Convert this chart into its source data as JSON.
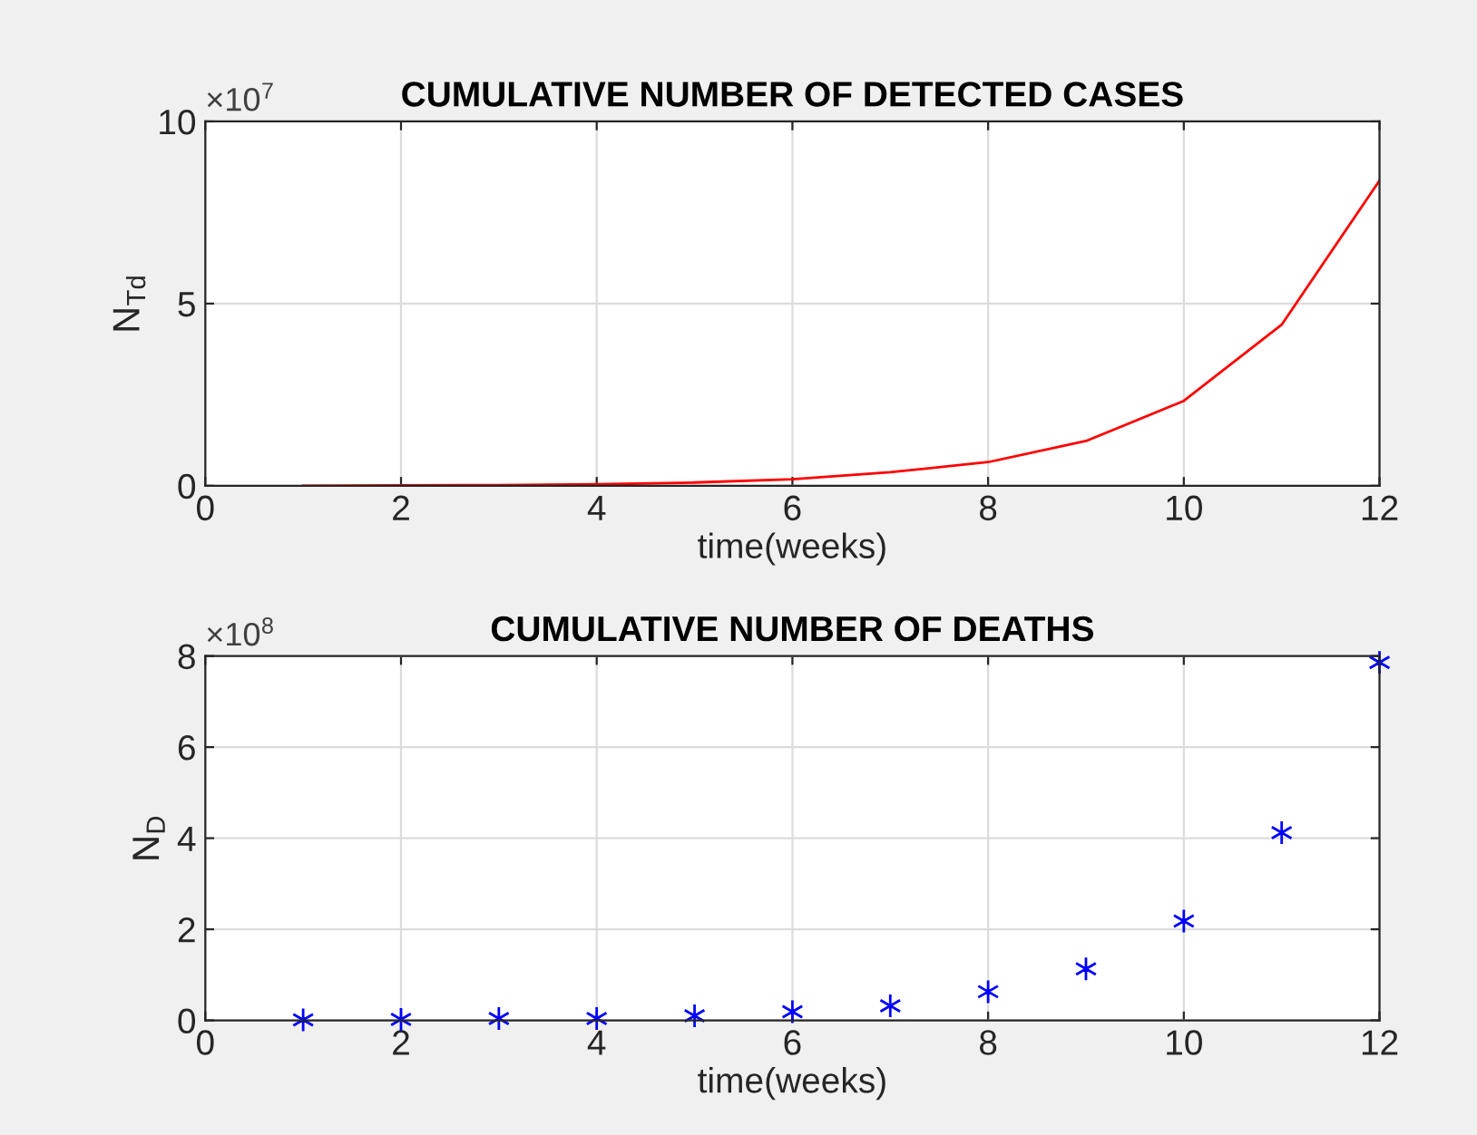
{
  "chart_data": [
    {
      "type": "line",
      "title": "CUMULATIVE NUMBER OF DETECTED CASES",
      "xlabel": "time(weeks)",
      "ylabel": "N$_{Td}$",
      "annotations": [
        "×10$^{7}$"
      ],
      "x": [
        1,
        2,
        3,
        4,
        5,
        6,
        7,
        8,
        9,
        10,
        11,
        12
      ],
      "series": [
        {
          "color": "#ff0000",
          "values": [
            0,
            0.01,
            0.02,
            0.04,
            0.09,
            0.18,
            0.37,
            0.65,
            1.23,
            2.33,
            4.42,
            8.38
          ]
        }
      ],
      "xlim": [
        0,
        12
      ],
      "xticks": [
        0,
        2,
        4,
        6,
        8,
        10,
        12
      ],
      "ylim": [
        0,
        10
      ],
      "yticks": [
        0,
        5,
        10
      ],
      "grid": true,
      "marker": "none",
      "line_style": "solid",
      "legend": false
    },
    {
      "type": "scatter",
      "title": "CUMULATIVE NUMBER OF DEATHS",
      "xlabel": "time(weeks)",
      "ylabel": "N$_{D}$",
      "annotations": [
        "×10$^{8}$"
      ],
      "x": [
        1,
        2,
        3,
        4,
        5,
        6,
        7,
        8,
        9,
        10,
        11,
        12
      ],
      "series": [
        {
          "color": "#0000ff",
          "values": [
            0.01,
            0.02,
            0.04,
            0.04,
            0.1,
            0.19,
            0.32,
            0.63,
            1.13,
            2.18,
            4.12,
            7.86
          ]
        }
      ],
      "xlim": [
        0,
        12
      ],
      "xticks": [
        0,
        2,
        4,
        6,
        8,
        10,
        12
      ],
      "ylim": [
        0,
        8
      ],
      "yticks": [
        0,
        2,
        4,
        6,
        8
      ],
      "grid": true,
      "marker": "cross",
      "legend": false
    }
  ]
}
